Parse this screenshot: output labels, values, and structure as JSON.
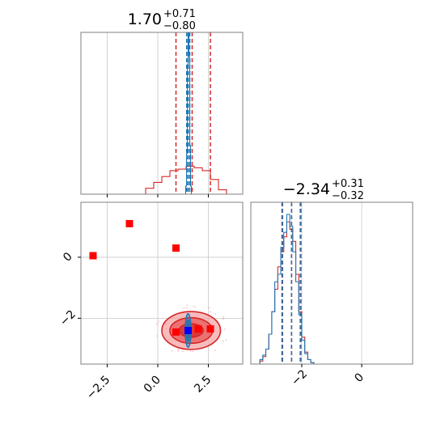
{
  "colors": {
    "blue": "#1f77b4",
    "red": "#d62728",
    "marker_red": "#ff0000",
    "marker_blue": "#0000ff",
    "light_red": "#f4a6a6",
    "mid_red": "#e85a5a"
  },
  "chart_data": [
    {
      "panel": "p1-marginal",
      "type": "histogram",
      "title_value": "1.70",
      "title_plus": "+0.71",
      "title_minus": "−0.80",
      "xlim": [
        -3.8,
        4.2
      ],
      "grid": true,
      "series": [
        {
          "color": "#d62728",
          "bin_edges": [
            -0.6,
            -0.2,
            0.2,
            0.6,
            1.0,
            1.4,
            1.8,
            2.2,
            2.6,
            3.0,
            3.4
          ],
          "heights": [
            0.02,
            0.04,
            0.06,
            0.08,
            0.085,
            0.095,
            0.09,
            0.08,
            0.05,
            0.015
          ]
        },
        {
          "color": "#1f77b4",
          "bin_edges": [
            1.38,
            1.42,
            1.46,
            1.5,
            1.54,
            1.58,
            1.62,
            1.66
          ],
          "heights": [
            0.05,
            0.25,
            0.8,
            1.0,
            0.85,
            0.3,
            0.05
          ]
        }
      ],
      "quantile_lines": [
        {
          "series": "red",
          "values": [
            0.9,
            1.7,
            2.6
          ]
        },
        {
          "series": "blue",
          "values": [
            1.43,
            1.5,
            1.58
          ]
        }
      ]
    },
    {
      "panel": "p2-marginal",
      "type": "histogram",
      "title_value": "−2.34",
      "title_plus": "+0.31",
      "title_minus": "−0.32",
      "xlim": [
        -3.7,
        1.7
      ],
      "xticks": [
        -2,
        0
      ],
      "xtick_labels": [
        "−2",
        "0"
      ],
      "grid": true,
      "series": [
        {
          "color": "#d62728",
          "bin_edges": [
            -3.4,
            -3.3,
            -3.2,
            -3.1,
            -3.0,
            -2.9,
            -2.8,
            -2.7,
            -2.6,
            -2.5,
            -2.4,
            -2.3,
            -2.2,
            -2.1,
            -2.0,
            -1.9,
            -1.8,
            -1.7,
            -1.6
          ],
          "heights": [
            0.02,
            0.05,
            0.1,
            0.2,
            0.35,
            0.5,
            0.65,
            0.75,
            0.85,
            0.95,
            0.9,
            0.82,
            0.6,
            0.35,
            0.18,
            0.08,
            0.03,
            0.01
          ]
        },
        {
          "color": "#1f77b4",
          "bin_edges": [
            -3.4,
            -3.3,
            -3.2,
            -3.1,
            -3.0,
            -2.9,
            -2.8,
            -2.7,
            -2.6,
            -2.5,
            -2.4,
            -2.3,
            -2.2,
            -2.1,
            -2.0,
            -1.9,
            -1.8,
            -1.7,
            -1.6
          ],
          "heights": [
            0.03,
            0.06,
            0.1,
            0.2,
            0.35,
            0.55,
            0.6,
            0.78,
            0.88,
            1.0,
            0.92,
            0.75,
            0.55,
            0.33,
            0.16,
            0.07,
            0.03,
            0.01
          ]
        }
      ],
      "quantile_lines": [
        {
          "series": "red",
          "values": [
            -2.66,
            -2.34,
            -2.03
          ]
        },
        {
          "series": "blue",
          "values": [
            -2.64,
            -2.34,
            -2.05
          ]
        }
      ]
    },
    {
      "panel": "p1-vs-p2",
      "type": "scatter",
      "xlim": [
        -3.8,
        4.2
      ],
      "ylim": [
        -3.5,
        1.8
      ],
      "xticks": [
        -2.5,
        0.0,
        2.5
      ],
      "xtick_labels": [
        "−2.5",
        "0.0",
        "2.5"
      ],
      "yticks": [
        -2,
        0
      ],
      "ytick_labels": [
        "−2",
        "0"
      ],
      "grid": true,
      "red_squares": [
        {
          "x": -1.4,
          "y": 1.1
        },
        {
          "x": -3.2,
          "y": 0.05
        },
        {
          "x": 0.9,
          "y": 0.3
        },
        {
          "x": 0.9,
          "y": -2.45
        },
        {
          "x": 2.0,
          "y": -2.35
        },
        {
          "x": 2.6,
          "y": -2.35
        }
      ],
      "blue_square": {
        "x": 1.5,
        "y": -2.4
      },
      "red_contours": [
        {
          "cx": 1.65,
          "cy": -2.4,
          "rx": 1.45,
          "ry": 0.62
        },
        {
          "cx": 1.65,
          "cy": -2.4,
          "rx": 1.05,
          "ry": 0.42
        },
        {
          "cx": 1.65,
          "cy": -2.4,
          "rx": 0.6,
          "ry": 0.22
        }
      ],
      "blue_contours": [
        {
          "cx": 1.5,
          "cy": -2.4,
          "rx": 0.14,
          "ry": 0.55
        },
        {
          "cx": 1.5,
          "cy": -2.4,
          "rx": 0.08,
          "ry": 0.35
        }
      ]
    }
  ]
}
